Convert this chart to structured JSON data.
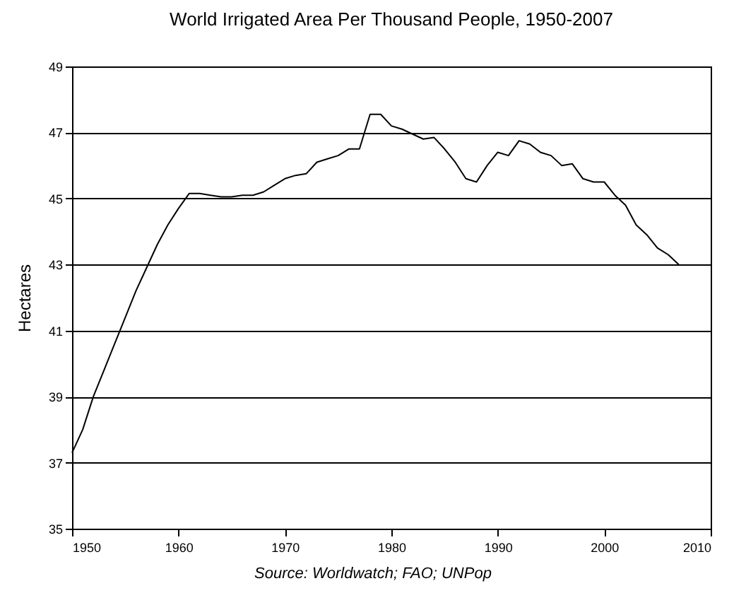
{
  "chart_data": {
    "type": "line",
    "title": "World Irrigated Area Per Thousand People, 1950-2007",
    "ylabel": "Hectares",
    "annotations": [
      "Source: Worldwatch; FAO; UNPop"
    ],
    "x": [
      1950,
      1951,
      1952,
      1953,
      1954,
      1955,
      1956,
      1957,
      1958,
      1959,
      1960,
      1961,
      1962,
      1963,
      1964,
      1965,
      1966,
      1967,
      1968,
      1969,
      1970,
      1971,
      1972,
      1973,
      1974,
      1975,
      1976,
      1977,
      1978,
      1979,
      1980,
      1981,
      1982,
      1983,
      1984,
      1985,
      1986,
      1987,
      1988,
      1989,
      1990,
      1991,
      1992,
      1993,
      1994,
      1995,
      1996,
      1997,
      1998,
      1999,
      2000,
      2001,
      2002,
      2003,
      2004,
      2005,
      2006,
      2007
    ],
    "series": [
      {
        "color": "#000000",
        "values": [
          37.3,
          38.0,
          39.0,
          39.8,
          40.6,
          41.4,
          42.2,
          42.9,
          43.6,
          44.2,
          44.7,
          45.15,
          45.15,
          45.1,
          45.05,
          45.05,
          45.1,
          45.1,
          45.2,
          45.4,
          45.6,
          45.7,
          45.75,
          46.1,
          46.2,
          46.3,
          46.5,
          46.5,
          47.55,
          47.55,
          47.2,
          47.1,
          46.95,
          46.8,
          46.85,
          46.5,
          46.1,
          45.6,
          45.5,
          46.0,
          46.4,
          46.3,
          46.75,
          46.65,
          46.4,
          46.3,
          46.0,
          46.05,
          45.6,
          45.5,
          45.5,
          45.1,
          44.8,
          44.2,
          43.9,
          43.5,
          43.3,
          43.0
        ]
      }
    ],
    "xlim": [
      1950,
      2010
    ],
    "xticks": [
      1950,
      1960,
      1970,
      1980,
      1990,
      2000,
      2010
    ],
    "ylim": [
      35,
      49
    ],
    "yticks": [
      35,
      37,
      39,
      41,
      43,
      45,
      47,
      49
    ],
    "grid": "y",
    "marker": "none",
    "line_style": "solid"
  }
}
